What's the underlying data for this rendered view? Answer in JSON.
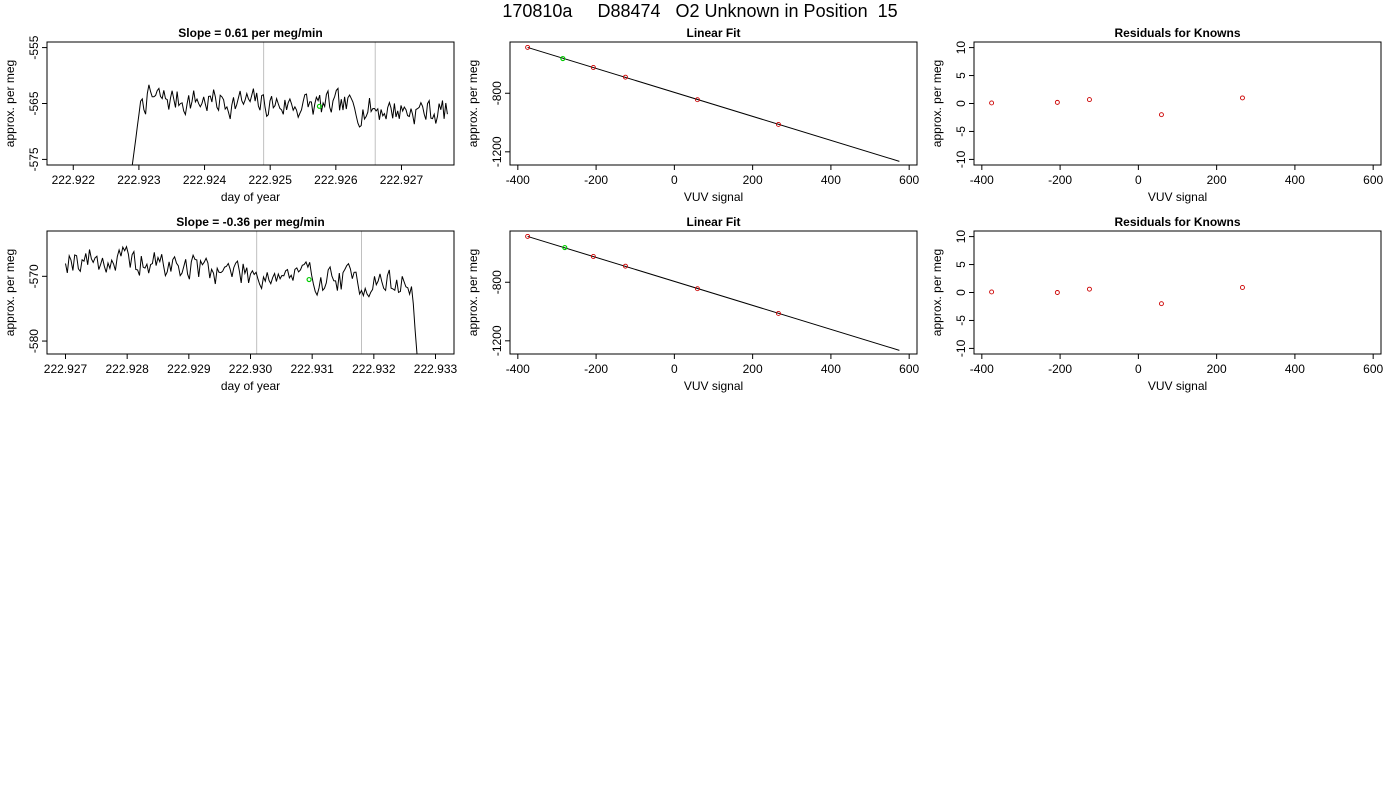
{
  "page_title": "170810a     D88474   O2 Unknown in Position  15",
  "colors": {
    "line": "#000000",
    "point": "#cc0000",
    "highlight": "#00cc00",
    "marker": "#c0c0c0"
  },
  "chart_data": [
    {
      "id": "p1",
      "type": "line",
      "title": "Slope =  0.61  per meg/min",
      "xlabel": "day of year",
      "ylabel": "approx. per meg",
      "xlim": [
        222.9216,
        222.9278
      ],
      "ylim": [
        -576,
        -554
      ],
      "xticks": [
        222.922,
        222.923,
        222.924,
        222.925,
        222.926,
        222.927
      ],
      "xtick_labels": [
        "222.922",
        "222.923",
        "222.924",
        "222.925",
        "222.926",
        "222.927"
      ],
      "yticks": [
        -575,
        -565,
        -555
      ],
      "ytick_labels": [
        "-575",
        "-565",
        "-555"
      ],
      "vlines": [
        222.9249,
        222.9266
      ],
      "trace": {
        "x_start": 222.9229,
        "x_end": 222.9277,
        "seed": 7,
        "rise_from": -576,
        "rise_to": -563,
        "mean_start": -564,
        "mean_end": -566.5,
        "noise": 2.2
      },
      "highlight_point": [
        222.92575,
        -565.5
      ]
    },
    {
      "id": "p2",
      "type": "scatter",
      "title": "Linear Fit",
      "xlabel": "VUV signal",
      "ylabel": "approx. per meg",
      "xlim": [
        -420,
        620
      ],
      "ylim": [
        -1290,
        -450
      ],
      "xticks": [
        -400,
        -200,
        0,
        200,
        400,
        600
      ],
      "xtick_labels": [
        "-400",
        "-200",
        "0",
        "200",
        "400",
        "600"
      ],
      "yticks": [
        -1200,
        -800
      ],
      "ytick_labels": [
        "-1200",
        "-800"
      ],
      "points": [
        [
          -375,
          -487
        ],
        [
          -207,
          -624
        ],
        [
          -125,
          -690
        ],
        [
          59,
          -844
        ],
        [
          266,
          -1013
        ]
      ],
      "highlight_point": [
        -285,
        -563
      ],
      "fit_line": [
        [
          -375,
          -487
        ],
        [
          575,
          -1265
        ]
      ]
    },
    {
      "id": "p3",
      "type": "scatter",
      "title": "Residuals for Knowns",
      "xlabel": "VUV signal",
      "ylabel": "approx. per meg",
      "xlim": [
        -420,
        620
      ],
      "ylim": [
        -11,
        11
      ],
      "xticks": [
        -400,
        -200,
        0,
        200,
        400,
        600
      ],
      "xtick_labels": [
        "-400",
        "-200",
        "0",
        "200",
        "400",
        "600"
      ],
      "yticks": [
        -10,
        -5,
        0,
        5,
        10
      ],
      "ytick_labels": [
        "-10",
        "-5",
        "0",
        "5",
        "10"
      ],
      "points": [
        [
          -375,
          0.1
        ],
        [
          -207,
          0.2
        ],
        [
          -125,
          0.7
        ],
        [
          59,
          -2.0
        ],
        [
          266,
          1.0
        ]
      ]
    },
    {
      "id": "p4",
      "type": "line",
      "title": "Slope =  -0.36  per meg/min",
      "xlabel": "day of year",
      "ylabel": "approx. per meg",
      "xlim": [
        222.9267,
        222.9333
      ],
      "ylim": [
        -582,
        -563
      ],
      "xticks": [
        222.927,
        222.928,
        222.929,
        222.93,
        222.931,
        222.932,
        222.933
      ],
      "xtick_labels": [
        "222.927",
        "222.928",
        "222.929",
        "222.930",
        "222.931",
        "222.932",
        "222.933"
      ],
      "yticks": [
        -580,
        -570
      ],
      "ytick_labels": [
        "-580",
        "-570"
      ],
      "vlines": [
        222.9301,
        222.9318
      ],
      "trace": {
        "x_start": 222.927,
        "x_end": 222.9327,
        "seed": 19,
        "mean_start": -567,
        "mean_end": -571.5,
        "noise": 2.0,
        "drop_to": -582
      },
      "highlight_point": [
        222.93095,
        -570.5
      ]
    },
    {
      "id": "p5",
      "type": "scatter",
      "title": "Linear Fit",
      "xlabel": "VUV signal",
      "ylabel": "approx. per meg",
      "xlim": [
        -420,
        620
      ],
      "ylim": [
        -1290,
        -450
      ],
      "xticks": [
        -400,
        -200,
        0,
        200,
        400,
        600
      ],
      "xtick_labels": [
        "-400",
        "-200",
        "0",
        "200",
        "400",
        "600"
      ],
      "yticks": [
        -1200,
        -800
      ],
      "ytick_labels": [
        "-1200",
        "-800"
      ],
      "points": [
        [
          -375,
          -487
        ],
        [
          -207,
          -624
        ],
        [
          -125,
          -690
        ],
        [
          59,
          -844
        ],
        [
          266,
          -1013
        ]
      ],
      "highlight_point": [
        -280,
        -563
      ],
      "fit_line": [
        [
          -375,
          -487
        ],
        [
          575,
          -1265
        ]
      ]
    },
    {
      "id": "p6",
      "type": "scatter",
      "title": "Residuals for Knowns",
      "xlabel": "VUV signal",
      "ylabel": "approx. per meg",
      "xlim": [
        -420,
        620
      ],
      "ylim": [
        -11,
        11
      ],
      "xticks": [
        -400,
        -200,
        0,
        200,
        400,
        600
      ],
      "xtick_labels": [
        "-400",
        "-200",
        "0",
        "200",
        "400",
        "600"
      ],
      "yticks": [
        -10,
        -5,
        0,
        5,
        10
      ],
      "ytick_labels": [
        "-10",
        "-5",
        "0",
        "5",
        "10"
      ],
      "points": [
        [
          -375,
          0.1
        ],
        [
          -207,
          0.0
        ],
        [
          -125,
          0.6
        ],
        [
          59,
          -2.0
        ],
        [
          266,
          0.9
        ]
      ]
    }
  ]
}
